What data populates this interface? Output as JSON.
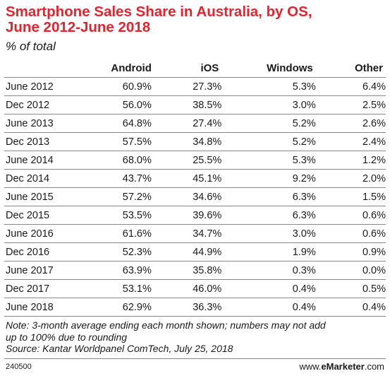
{
  "chart_data": {
    "type": "table",
    "title_line1": "Smartphone Sales Share in Australia, by OS,",
    "title_line2": "June 2012-June 2018",
    "subtitle": "% of total",
    "columns": [
      "",
      "Android",
      "iOS",
      "Windows",
      "Other"
    ],
    "rows": [
      {
        "label": "June 2012",
        "values": [
          "60.9%",
          "27.3%",
          "5.3%",
          "6.4%"
        ]
      },
      {
        "label": "Dec 2012",
        "values": [
          "56.0%",
          "38.5%",
          "3.0%",
          "2.5%"
        ]
      },
      {
        "label": "June 2013",
        "values": [
          "64.8%",
          "27.4%",
          "5.2%",
          "2.6%"
        ]
      },
      {
        "label": "Dec 2013",
        "values": [
          "57.5%",
          "34.8%",
          "5.2%",
          "2.4%"
        ]
      },
      {
        "label": "June 2014",
        "values": [
          "68.0%",
          "25.5%",
          "5.3%",
          "1.2%"
        ]
      },
      {
        "label": "Dec 2014",
        "values": [
          "43.7%",
          "45.1%",
          "9.2%",
          "2.0%"
        ]
      },
      {
        "label": "June 2015",
        "values": [
          "57.2%",
          "34.6%",
          "6.3%",
          "1.5%"
        ]
      },
      {
        "label": "Dec 2015",
        "values": [
          "53.5%",
          "39.6%",
          "6.3%",
          "0.6%"
        ]
      },
      {
        "label": "June 2016",
        "values": [
          "61.6%",
          "34.7%",
          "3.0%",
          "0.6%"
        ]
      },
      {
        "label": "Dec 2016",
        "values": [
          "52.3%",
          "44.9%",
          "1.9%",
          "0.9%"
        ]
      },
      {
        "label": "June 2017",
        "values": [
          "63.9%",
          "35.8%",
          "0.3%",
          "0.0%"
        ]
      },
      {
        "label": "Dec 2017",
        "values": [
          "53.1%",
          "46.0%",
          "0.4%",
          "0.5%"
        ]
      },
      {
        "label": "June 2018",
        "values": [
          "62.9%",
          "36.3%",
          "0.4%",
          "0.4%"
        ]
      }
    ],
    "note_lines": [
      "Note: 3-month average ending each month shown; numbers may not add",
      "up to 100% due to rounding",
      "Source: Kantar Worldpanel ComTech, July 25, 2018"
    ]
  },
  "footer": {
    "chart_id": "240500",
    "brand_prefix": "www.",
    "brand_name": "eMarketer",
    "brand_suffix": ".com"
  },
  "colors": {
    "title": "#e8222c",
    "rule": "#888888"
  }
}
